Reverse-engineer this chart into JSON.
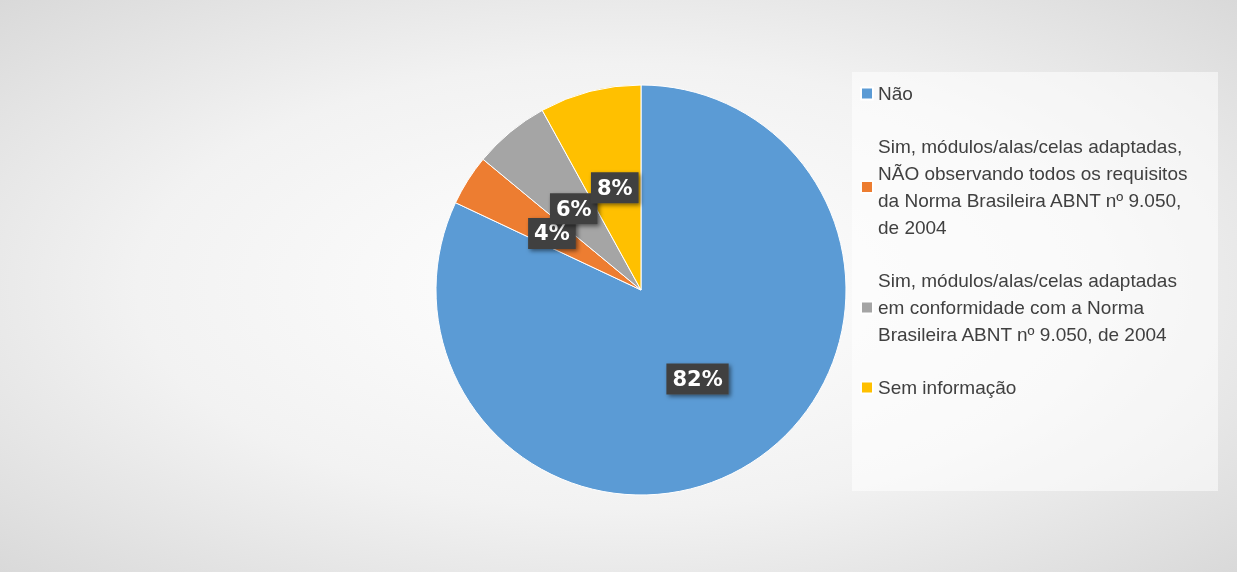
{
  "chart_data": {
    "type": "pie",
    "categories": [
      "Não",
      "Sim, módulos/alas/celas adaptadas, NÃO observando todos os requisitos da Norma Brasileira ABNT nº 9.050, de 2004",
      "Sim, módulos/alas/celas adaptadas em conformidade com a Norma Brasileira ABNT nº 9.050, de 2004",
      "Sem informação"
    ],
    "values": [
      82,
      4,
      6,
      8
    ],
    "colors": [
      "#5b9bd5",
      "#ed7d31",
      "#a5a5a5",
      "#ffc000"
    ],
    "value_labels": [
      "82%",
      "4%",
      "6%",
      "8%"
    ],
    "legend": "right"
  }
}
